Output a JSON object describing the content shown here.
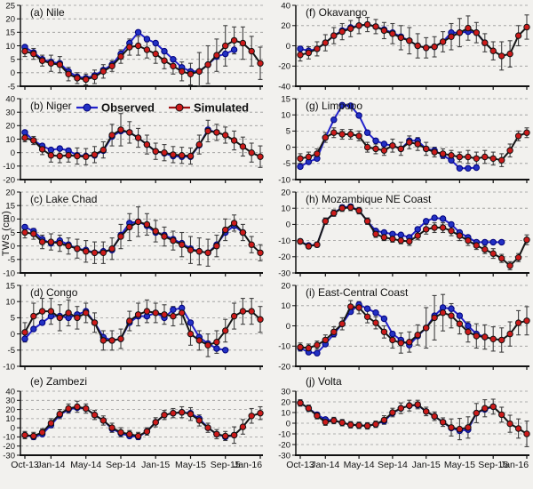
{
  "figure": {
    "ylabel": "TWS (cm)",
    "legend": {
      "observed_label": "Observed",
      "simulated_label": "Simulated"
    },
    "x_tick_labels": [
      "Oct-13",
      "Jan-14",
      "May-14",
      "Sep-14",
      "Jan-15",
      "May-15",
      "Sep-15",
      "Jan-16"
    ],
    "x_tick_indices": [
      0,
      3,
      7,
      11,
      15,
      19,
      23,
      27
    ],
    "colors": {
      "background": "#f2f1ee",
      "observed_fill": "#2230c4",
      "observed_edge": "#00007a",
      "observed_line": "#2222cc",
      "simulated_fill": "#cd1a1a",
      "simulated_edge": "#111111",
      "simulated_line": "#151515",
      "legend_sim_line": "#a01010",
      "grid": "#999999",
      "error_bar": "#3f3f3f",
      "text": "#111111"
    }
  },
  "chart_data": {
    "type": "line",
    "series_names": [
      "Observed",
      "Simulated"
    ],
    "x_months": [
      "Oct-13",
      "Nov-13",
      "Dec-13",
      "Jan-14",
      "Feb-14",
      "Mar-14",
      "Apr-14",
      "May-14",
      "Jun-14",
      "Jul-14",
      "Aug-14",
      "Sep-14",
      "Oct-14",
      "Nov-14",
      "Dec-14",
      "Jan-15",
      "Feb-15",
      "Mar-15",
      "Apr-15",
      "May-15",
      "Jun-15",
      "Jul-15",
      "Aug-15",
      "Sep-15",
      "Oct-15",
      "Nov-15",
      "Dec-15",
      "Jan-16"
    ],
    "panels": [
      {
        "id": "a",
        "title": "(a) Nile",
        "ylim": [
          -5,
          25
        ],
        "yticks": [
          -5,
          0,
          5,
          10,
          15,
          20,
          25
        ],
        "observed": [
          9.5,
          7.5,
          5,
          4,
          3.5,
          0.5,
          -1.5,
          -2,
          -1,
          1,
          3,
          7,
          11,
          15,
          12.5,
          11,
          8,
          5,
          2,
          0.5,
          0.5,
          3,
          6,
          7,
          8.5,
          null,
          null,
          null
        ],
        "simulated": [
          8,
          7,
          4.5,
          3.5,
          3,
          -0.5,
          -2,
          -2.5,
          -1.5,
          0.5,
          2.5,
          6,
          9.5,
          10,
          8.5,
          7,
          4.5,
          2.5,
          0.5,
          -0.5,
          0.5,
          3,
          6.5,
          10,
          12,
          11,
          8,
          3.5
        ],
        "error": [
          2,
          2,
          2,
          3,
          3,
          2.5,
          2,
          2,
          2.5,
          2.5,
          2,
          2.5,
          3,
          3.5,
          3,
          3.5,
          3,
          3,
          3.5,
          4,
          7,
          7,
          6,
          7.5,
          5,
          6,
          5.5,
          6
        ]
      },
      {
        "id": "b",
        "title": "(b) Niger",
        "ylim": [
          -20,
          40
        ],
        "yticks": [
          -20,
          -10,
          0,
          10,
          20,
          30,
          40
        ],
        "observed": [
          15,
          9,
          5,
          2,
          3,
          1.5,
          -2,
          -2.5,
          -2,
          1.5,
          12,
          16,
          15,
          11,
          6,
          1,
          -0.5,
          -2.5,
          -3,
          -3,
          5.5,
          17,
          15,
          null,
          null,
          null,
          null,
          null
        ],
        "simulated": [
          11,
          9,
          2.5,
          -2,
          -2.5,
          -2,
          -2.5,
          -3,
          -1.5,
          2,
          13,
          17,
          15,
          11,
          6,
          1,
          0,
          -1.5,
          -2,
          -2.5,
          6,
          16,
          15,
          13,
          9,
          4.5,
          0,
          -3
        ],
        "error": [
          3,
          3,
          4,
          5,
          5,
          5,
          6,
          6,
          6,
          6,
          8,
          12,
          8,
          7,
          7,
          6,
          6,
          6,
          6,
          6,
          7,
          8,
          6,
          6,
          7,
          7,
          7,
          8
        ]
      },
      {
        "id": "c",
        "title": "(c) Lake Chad",
        "ylim": [
          -10,
          20
        ],
        "yticks": [
          -10,
          -5,
          0,
          5,
          10,
          15,
          20
        ],
        "observed": [
          7,
          5.5,
          2.5,
          1,
          2,
          0.5,
          -1,
          -1.5,
          -2.5,
          -2,
          -1.5,
          4,
          8.5,
          9,
          7.5,
          5,
          4,
          2.5,
          1,
          -1,
          -2,
          -2.5,
          0.5,
          5,
          7.5,
          5,
          null,
          null
        ],
        "simulated": [
          5,
          4.5,
          1.5,
          1.5,
          1,
          0,
          -1,
          -2,
          -2.5,
          -2.5,
          -1,
          3.5,
          7,
          9,
          8,
          5.5,
          3.5,
          2,
          0.5,
          -1.5,
          -2,
          -2.5,
          0,
          6,
          8.5,
          5,
          0.5,
          -2.5
        ],
        "error": [
          2,
          2,
          2.5,
          3,
          3,
          3,
          3.5,
          4,
          4,
          4,
          4,
          4.5,
          5,
          5.5,
          4,
          4,
          3.5,
          3.5,
          4.5,
          5,
          5,
          5,
          4,
          4,
          3,
          3,
          3,
          3
        ]
      },
      {
        "id": "d",
        "title": "(d) Congo",
        "ylim": [
          -10,
          15
        ],
        "yticks": [
          -10,
          -5,
          0,
          5,
          10,
          15
        ],
        "observed": [
          -1.5,
          1.5,
          3.5,
          5.5,
          5.5,
          5,
          6,
          7,
          3.5,
          -1,
          -2,
          -1.5,
          3.5,
          5.5,
          5.5,
          6.5,
          5,
          7.5,
          8,
          3.5,
          -1,
          -3,
          -4.5,
          -5,
          null,
          null,
          null,
          null
        ],
        "simulated": [
          0.5,
          5.5,
          7,
          7,
          5,
          6.5,
          5,
          6.5,
          3.5,
          -2,
          -2,
          -1.5,
          4,
          6,
          7,
          6.5,
          6,
          5.5,
          6.5,
          0,
          -2,
          -3.5,
          -2.5,
          1,
          5.5,
          7,
          7,
          4.5
        ],
        "error": [
          3,
          4,
          4,
          4,
          4,
          4,
          3.5,
          3,
          3,
          3,
          3,
          3,
          3,
          3.5,
          3.5,
          3,
          3,
          3,
          3.5,
          3.5,
          3,
          3.5,
          3.5,
          3.5,
          4,
          4,
          4,
          4
        ]
      },
      {
        "id": "e",
        "title": "(e) Zambezi",
        "ylim": [
          -30,
          40
        ],
        "yticks": [
          -30,
          -20,
          -10,
          0,
          10,
          20,
          30,
          40
        ],
        "observed": [
          -8,
          -10,
          -7,
          3,
          14,
          20,
          22,
          21,
          14,
          8,
          -1,
          -6,
          -9,
          -10,
          -4,
          6,
          14,
          16,
          17,
          16,
          10,
          0,
          -7,
          -10,
          -8,
          null,
          null,
          null
        ],
        "simulated": [
          -8,
          -9,
          -5,
          5,
          15,
          21,
          23,
          21,
          14,
          8,
          0,
          -5,
          -7,
          -9,
          -4,
          6,
          14,
          16,
          17,
          15,
          8,
          0,
          -7,
          -9,
          -8,
          1,
          13,
          16
        ],
        "error": [
          4,
          4,
          4,
          5,
          5,
          5,
          6,
          5,
          5,
          5,
          5,
          5,
          4,
          4,
          4,
          5,
          5,
          5,
          6,
          7,
          6,
          5,
          5,
          5,
          9,
          8,
          8,
          7
        ]
      },
      {
        "id": "f",
        "title": "(f) Okavango",
        "ylim": [
          -40,
          40
        ],
        "yticks": [
          -40,
          -20,
          0,
          20,
          40
        ],
        "observed": [
          -3,
          -5,
          -3,
          3,
          10,
          15,
          18,
          20,
          21,
          19,
          16,
          13,
          9,
          5,
          0,
          -2,
          -1,
          4,
          13,
          13,
          14,
          13,
          3,
          null,
          null,
          null,
          null,
          null
        ],
        "simulated": [
          -9,
          -7,
          -3,
          3,
          10,
          14,
          17,
          20,
          21,
          19,
          15,
          12,
          8,
          5,
          0,
          -2,
          -1,
          4,
          9,
          13,
          17.5,
          13,
          3,
          -5,
          -10,
          -8,
          10,
          18.5
        ],
        "error": [
          6,
          6,
          7,
          8,
          8,
          8,
          8,
          8,
          7,
          7,
          8,
          10,
          12,
          13,
          12,
          10,
          10,
          10,
          13,
          14,
          12,
          10,
          9,
          9,
          14,
          13,
          10,
          12
        ]
      },
      {
        "id": "g",
        "title": "(g) Limpopo",
        "ylim": [
          -10,
          15
        ],
        "yticks": [
          -10,
          -5,
          0,
          5,
          10,
          15
        ],
        "observed": [
          -6,
          -4.5,
          -3.5,
          3,
          8.5,
          13,
          12.8,
          9.8,
          4.5,
          2,
          1,
          0.5,
          -0.5,
          2,
          2,
          -0.5,
          -1,
          -2.5,
          -4,
          -6.5,
          -6.5,
          -6.3,
          null,
          null,
          null,
          null,
          null,
          null
        ],
        "simulated": [
          -3.5,
          -3,
          -2,
          3,
          4.5,
          4,
          4,
          3.5,
          0,
          -0.5,
          -1,
          0.5,
          -0.5,
          1.5,
          1,
          -0.5,
          -1.5,
          -2,
          -2.5,
          -3,
          -3,
          -3.5,
          -3,
          -3.5,
          -4,
          -1,
          3.5,
          4.5
        ],
        "error": [
          1.5,
          1.5,
          1.5,
          1.5,
          1.5,
          1.5,
          1.5,
          1.5,
          1.5,
          1.5,
          1.5,
          2,
          2,
          2,
          2,
          2,
          1.5,
          1.5,
          1.5,
          1.5,
          2,
          2,
          2,
          2,
          2,
          2,
          1.5,
          1.5
        ]
      },
      {
        "id": "h",
        "title": "(h) Mozambique NE Coast",
        "ylim": [
          -30,
          20
        ],
        "yticks": [
          -30,
          -20,
          -10,
          0,
          10,
          20
        ],
        "observed": [
          -10.5,
          -13,
          -12.5,
          2,
          7,
          10.5,
          11,
          8.5,
          2,
          -4,
          -5,
          -6,
          -6.5,
          -8,
          -3,
          2,
          4,
          3.5,
          0,
          -5,
          -8,
          -11,
          -11,
          -11,
          -11,
          null,
          null,
          null
        ],
        "simulated": [
          -10.5,
          -13.5,
          -12.5,
          2,
          7,
          10,
          10.5,
          8.5,
          2,
          -6,
          -8,
          -9,
          -10,
          -10.5,
          -7,
          -3,
          -2,
          -2,
          -4,
          -7,
          -10,
          -13,
          -15.5,
          -18,
          -21,
          -25.5,
          -20.5,
          -9.5
        ],
        "error": [
          1.5,
          1.5,
          1.5,
          2,
          2,
          2,
          2,
          2,
          2,
          2,
          2,
          2,
          2,
          2.5,
          2.5,
          3,
          3,
          3,
          3,
          3,
          3,
          2.5,
          2.5,
          3,
          2.5,
          2.5,
          2.5,
          3
        ]
      },
      {
        "id": "i",
        "title": "(i) East-Central Coast",
        "ylim": [
          -20,
          20
        ],
        "yticks": [
          -20,
          -10,
          0,
          10,
          20
        ],
        "observed": [
          -11,
          -13,
          -13.5,
          -9,
          -4,
          1,
          7,
          10.5,
          8.5,
          6.5,
          3.5,
          -4,
          -7,
          -9.5,
          -5,
          -1,
          5,
          9,
          8.5,
          5,
          0,
          -4,
          -5.5,
          null,
          null,
          null,
          null,
          null
        ],
        "simulated": [
          -10.5,
          -11,
          -9.5,
          -7,
          -3,
          1,
          9.5,
          9,
          4.5,
          1.5,
          -3,
          -7,
          -8.5,
          -8,
          -4.5,
          -1,
          4,
          6.5,
          5,
          1,
          -3,
          -5,
          -5.5,
          -6.5,
          -7,
          -4,
          1.5,
          2.5
        ],
        "error": [
          2,
          2,
          2,
          2.5,
          2.5,
          3,
          3,
          3,
          3,
          3,
          3,
          4,
          5,
          5,
          5,
          10,
          11,
          9,
          6,
          5,
          5,
          6,
          6,
          6,
          6,
          6,
          6,
          7
        ]
      },
      {
        "id": "j",
        "title": "(j) Volta",
        "ylim": [
          -30,
          30
        ],
        "yticks": [
          -30,
          -20,
          -10,
          0,
          10,
          20,
          30
        ],
        "observed": [
          19,
          14,
          8,
          3.5,
          2.5,
          0.5,
          -1.5,
          -2,
          -2.5,
          -1,
          2,
          9.5,
          14,
          16.5,
          17,
          11,
          6.5,
          1,
          -4.5,
          -7,
          -6,
          9.5,
          13,
          15.5,
          null,
          null,
          null,
          null
        ],
        "simulated": [
          19,
          14,
          7,
          1,
          2.5,
          0.5,
          -1.5,
          -2,
          -2.5,
          -1,
          3,
          10,
          14,
          16.5,
          17.5,
          11,
          6.5,
          1,
          -4,
          -5.5,
          -4,
          9.5,
          14,
          15.5,
          8,
          -0.5,
          -5,
          -10
        ],
        "error": [
          3,
          3,
          3,
          3,
          3,
          3,
          3,
          3,
          3,
          3,
          4,
          4,
          5,
          5,
          4,
          4,
          4,
          4,
          8,
          10,
          10,
          9,
          8,
          7,
          7,
          8,
          9,
          12
        ]
      }
    ]
  }
}
